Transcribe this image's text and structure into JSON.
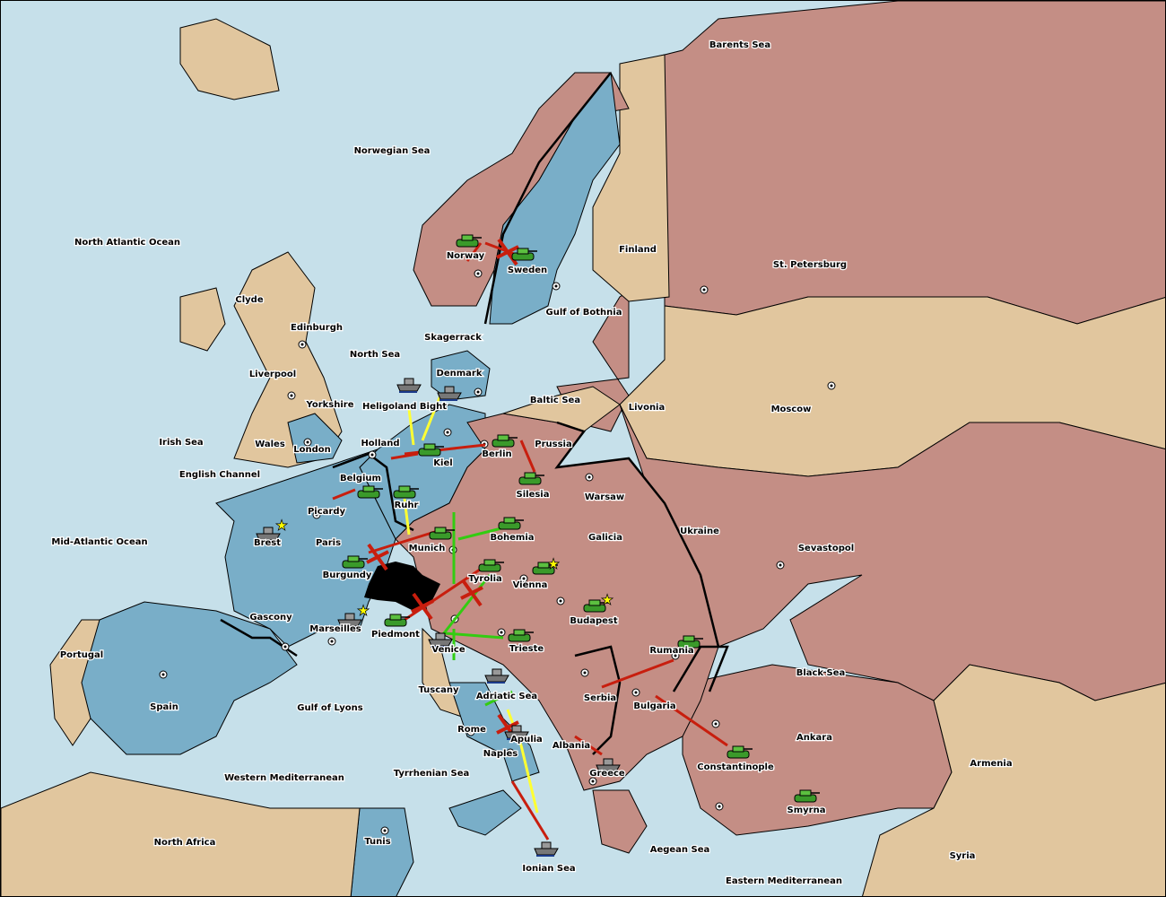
{
  "colors": {
    "sea": "#c6e0ea",
    "power_blue": "#79aec8",
    "power_red": "#c48e85",
    "neutral": "#e1c69e",
    "move_order": "#c81e0e",
    "support_order": "#ffff33",
    "convoy_hold_order": "#33cc11",
    "failed_order": "#c81e0e",
    "supply_star": "#ffff00"
  },
  "labels": [
    "Barents Sea",
    "Norwegian Sea",
    "North Atlantic Ocean",
    "Clyde",
    "Edinburgh",
    "Liverpool",
    "Yorkshire",
    "North Sea",
    "Irish Sea",
    "Wales",
    "London",
    "English Channel",
    "Mid-Atlantic Ocean",
    "Brest",
    "Picardy",
    "Paris",
    "Belgium",
    "Holland",
    "Heligoland Bight",
    "Denmark",
    "Skagerrack",
    "Norway",
    "Sweden",
    "Finland",
    "St. Petersburg",
    "Gulf of Bothnia",
    "Baltic Sea",
    "Livonia",
    "Moscow",
    "Prussia",
    "Berlin",
    "Kiel",
    "Ruhr",
    "Silesia",
    "Warsaw",
    "Ukraine",
    "Sevastopol",
    "Munich",
    "Bohemia",
    "Galicia",
    "Burgundy",
    "Gascony",
    "Marseilles",
    "Piedmont",
    "Tyrolia",
    "Vienna",
    "Budapest",
    "Venice",
    "Trieste",
    "Rumania",
    "Black Sea",
    "Portugal",
    "Spain",
    "Gulf of Lyons",
    "Tuscany",
    "Adriatic Sea",
    "Rome",
    "Apulia",
    "Naples",
    "Serbia",
    "Bulgaria",
    "Albania",
    "Greece",
    "Constantinople",
    "Ankara",
    "Armenia",
    "Smyrna",
    "Syria",
    "Western Mediterranean",
    "Tyrrhenian Sea",
    "North Africa",
    "Tunis",
    "Ionian Sea",
    "Aegean Sea",
    "Eastern Mediterranean"
  ],
  "units": [
    {
      "type": "army",
      "color": "#c48e85"
    },
    {
      "type": "army",
      "color": "#79aec8"
    },
    {
      "type": "fleet",
      "color": "#79aec8"
    },
    {
      "type": "fleet",
      "color": "#79aec8"
    },
    {
      "type": "army",
      "color": "#79aec8"
    },
    {
      "type": "army",
      "color": "#c48e85"
    },
    {
      "type": "army",
      "color": "#c48e85"
    },
    {
      "type": "army",
      "color": "#79aec8"
    },
    {
      "type": "army",
      "color": "#79aec8"
    },
    {
      "type": "army",
      "color": "#c48e85"
    },
    {
      "type": "army",
      "color": "#c48e85"
    },
    {
      "type": "fleet",
      "color": "#79aec8"
    },
    {
      "type": "army",
      "color": "#79aec8"
    },
    {
      "type": "fleet",
      "color": "#79aec8"
    },
    {
      "type": "army",
      "color": "#79aec8"
    },
    {
      "type": "army",
      "color": "#c48e85"
    },
    {
      "type": "army",
      "color": "#c48e85"
    },
    {
      "type": "fleet",
      "color": "#79aec8"
    },
    {
      "type": "army",
      "color": "#c48e85"
    },
    {
      "type": "army",
      "color": "#c48e85"
    },
    {
      "type": "army",
      "color": "#c48e85"
    },
    {
      "type": "fleet",
      "color": "#79aec8"
    },
    {
      "type": "fleet",
      "color": "#79aec8"
    },
    {
      "type": "fleet",
      "color": "#c48e85"
    },
    {
      "type": "army",
      "color": "#c48e85"
    },
    {
      "type": "army",
      "color": "#c48e85"
    },
    {
      "type": "fleet",
      "color": "#79aec8"
    }
  ]
}
